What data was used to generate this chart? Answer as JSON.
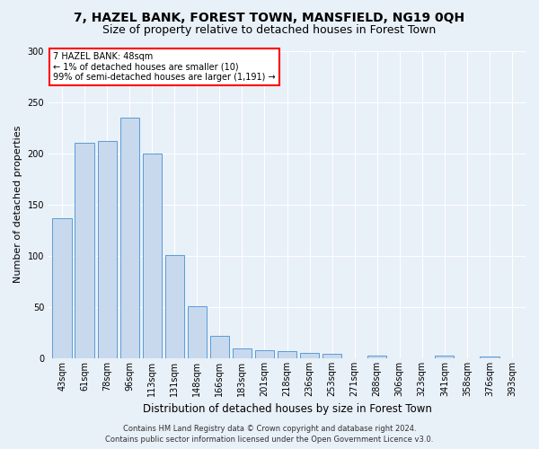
{
  "title": "7, HAZEL BANK, FOREST TOWN, MANSFIELD, NG19 0QH",
  "subtitle": "Size of property relative to detached houses in Forest Town",
  "xlabel": "Distribution of detached houses by size in Forest Town",
  "ylabel": "Number of detached properties",
  "categories": [
    "43sqm",
    "61sqm",
    "78sqm",
    "96sqm",
    "113sqm",
    "131sqm",
    "148sqm",
    "166sqm",
    "183sqm",
    "201sqm",
    "218sqm",
    "236sqm",
    "253sqm",
    "271sqm",
    "288sqm",
    "306sqm",
    "323sqm",
    "341sqm",
    "358sqm",
    "376sqm",
    "393sqm"
  ],
  "values": [
    137,
    210,
    212,
    235,
    200,
    101,
    51,
    22,
    10,
    8,
    7,
    5,
    4,
    0,
    3,
    0,
    0,
    3,
    0,
    2,
    0
  ],
  "bar_color": "#c8d9ee",
  "bar_edge_color": "#5b9bd5",
  "annotation_box_text": "7 HAZEL BANK: 48sqm\n← 1% of detached houses are smaller (10)\n99% of semi-detached houses are larger (1,191) →",
  "annotation_box_color": "white",
  "annotation_box_edge_color": "red",
  "ylim": [
    0,
    300
  ],
  "yticks": [
    0,
    50,
    100,
    150,
    200,
    250,
    300
  ],
  "footer_line1": "Contains HM Land Registry data © Crown copyright and database right 2024.",
  "footer_line2": "Contains public sector information licensed under the Open Government Licence v3.0.",
  "background_color": "#e8f0f8",
  "grid_color": "#ffffff",
  "title_fontsize": 10,
  "subtitle_fontsize": 9,
  "xlabel_fontsize": 8.5,
  "ylabel_fontsize": 8,
  "tick_fontsize": 7,
  "annotation_fontsize": 7,
  "footer_fontsize": 6
}
